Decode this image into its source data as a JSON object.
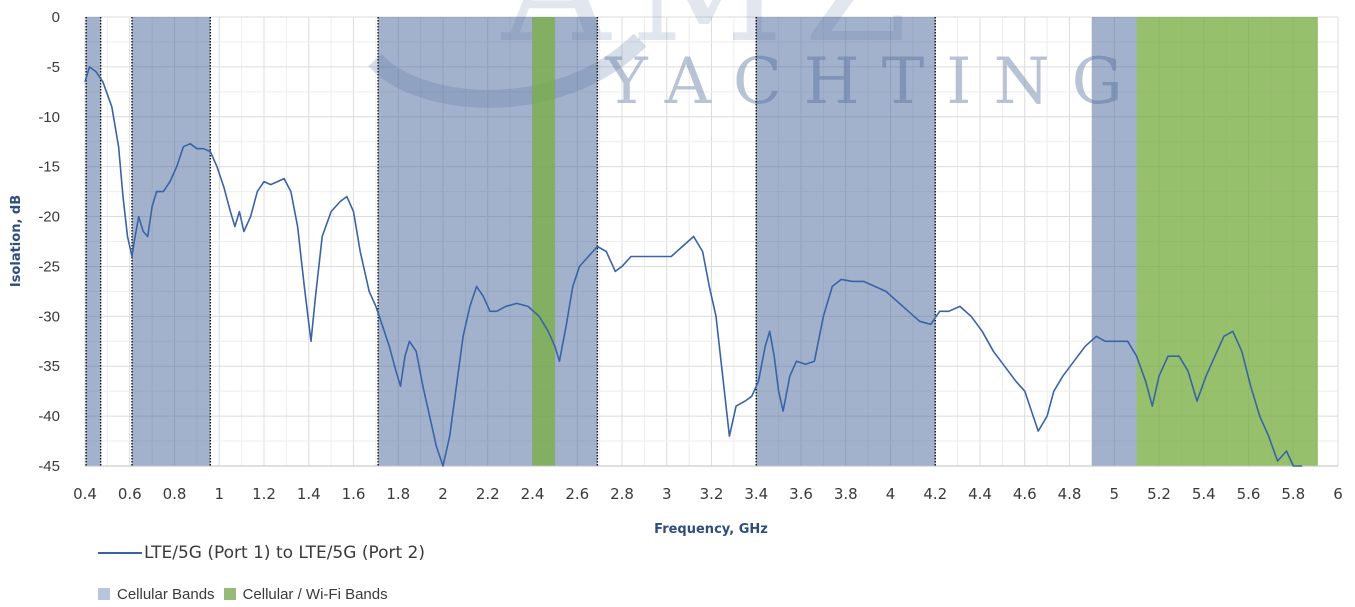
{
  "watermark": {
    "text": "YACHTING",
    "logo_letters": "AMZ"
  },
  "chart_data": {
    "type": "line",
    "xlabel": "Frequency, GHz",
    "ylabel": "Isolation, dB",
    "xlim": [
      0.4,
      6
    ],
    "ylim": [
      -45,
      0
    ],
    "x_ticks": [
      "0.4",
      "0.6",
      "0.8",
      "1",
      "1.2",
      "1.4",
      "1.6",
      "1.8",
      "2",
      "2.2",
      "2.4",
      "2.6",
      "2.8",
      "3",
      "3.2",
      "3.4",
      "3.6",
      "3.8",
      "4",
      "4.2",
      "4.4",
      "4.6",
      "4.8",
      "5",
      "5.2",
      "5.4",
      "5.6",
      "5.8",
      "6"
    ],
    "y_ticks": [
      "0",
      "-5",
      "-10",
      "-15",
      "-20",
      "-25",
      "-30",
      "-35",
      "-40",
      "-45"
    ],
    "grid": true,
    "legend_position": "bottom-left",
    "series": [
      {
        "name": "LTE/5G (Port 1) to LTE/5G (Port 2)",
        "color": "#3a63a6",
        "points": [
          [
            0.4,
            -6.5
          ],
          [
            0.42,
            -5.0
          ],
          [
            0.45,
            -5.5
          ],
          [
            0.48,
            -6.5
          ],
          [
            0.52,
            -9.0
          ],
          [
            0.55,
            -13.0
          ],
          [
            0.57,
            -18.0
          ],
          [
            0.59,
            -22.0
          ],
          [
            0.61,
            -24.0
          ],
          [
            0.62,
            -22.5
          ],
          [
            0.64,
            -20.0
          ],
          [
            0.66,
            -21.5
          ],
          [
            0.68,
            -22.0
          ],
          [
            0.7,
            -19.0
          ],
          [
            0.72,
            -17.5
          ],
          [
            0.75,
            -17.5
          ],
          [
            0.78,
            -16.5
          ],
          [
            0.81,
            -15.0
          ],
          [
            0.84,
            -13.0
          ],
          [
            0.87,
            -12.7
          ],
          [
            0.9,
            -13.2
          ],
          [
            0.93,
            -13.2
          ],
          [
            0.96,
            -13.5
          ],
          [
            0.99,
            -15.0
          ],
          [
            1.02,
            -17.0
          ],
          [
            1.05,
            -19.5
          ],
          [
            1.07,
            -21.0
          ],
          [
            1.09,
            -19.5
          ],
          [
            1.11,
            -21.5
          ],
          [
            1.14,
            -20.0
          ],
          [
            1.17,
            -17.5
          ],
          [
            1.2,
            -16.5
          ],
          [
            1.23,
            -16.8
          ],
          [
            1.26,
            -16.5
          ],
          [
            1.29,
            -16.2
          ],
          [
            1.32,
            -17.5
          ],
          [
            1.35,
            -21.0
          ],
          [
            1.38,
            -27.0
          ],
          [
            1.41,
            -32.5
          ],
          [
            1.43,
            -28.0
          ],
          [
            1.46,
            -22.0
          ],
          [
            1.5,
            -19.5
          ],
          [
            1.54,
            -18.5
          ],
          [
            1.57,
            -18.0
          ],
          [
            1.6,
            -19.5
          ],
          [
            1.63,
            -23.5
          ],
          [
            1.67,
            -27.5
          ],
          [
            1.7,
            -29.0
          ],
          [
            1.73,
            -31.0
          ],
          [
            1.76,
            -33.0
          ],
          [
            1.79,
            -35.5
          ],
          [
            1.81,
            -37.0
          ],
          [
            1.83,
            -34.0
          ],
          [
            1.85,
            -32.5
          ],
          [
            1.88,
            -33.5
          ],
          [
            1.91,
            -37.0
          ],
          [
            1.94,
            -40.0
          ],
          [
            1.97,
            -43.0
          ],
          [
            2.0,
            -45.0
          ],
          [
            2.03,
            -42.0
          ],
          [
            2.06,
            -37.0
          ],
          [
            2.09,
            -32.0
          ],
          [
            2.12,
            -29.0
          ],
          [
            2.15,
            -27.0
          ],
          [
            2.18,
            -28.0
          ],
          [
            2.21,
            -29.5
          ],
          [
            2.24,
            -29.5
          ],
          [
            2.28,
            -29.0
          ],
          [
            2.33,
            -28.7
          ],
          [
            2.38,
            -29.0
          ],
          [
            2.43,
            -30.0
          ],
          [
            2.47,
            -31.5
          ],
          [
            2.5,
            -33.0
          ],
          [
            2.52,
            -34.5
          ],
          [
            2.55,
            -31.0
          ],
          [
            2.58,
            -27.0
          ],
          [
            2.61,
            -25.0
          ],
          [
            2.65,
            -24.0
          ],
          [
            2.69,
            -23.0
          ],
          [
            2.73,
            -23.5
          ],
          [
            2.77,
            -25.5
          ],
          [
            2.8,
            -25.0
          ],
          [
            2.84,
            -24.0
          ],
          [
            2.9,
            -24.0
          ],
          [
            2.96,
            -24.0
          ],
          [
            3.02,
            -24.0
          ],
          [
            3.07,
            -23.0
          ],
          [
            3.12,
            -22.0
          ],
          [
            3.16,
            -23.5
          ],
          [
            3.19,
            -27.0
          ],
          [
            3.22,
            -30.0
          ],
          [
            3.25,
            -36.0
          ],
          [
            3.28,
            -42.0
          ],
          [
            3.31,
            -39.0
          ],
          [
            3.35,
            -38.5
          ],
          [
            3.38,
            -38.0
          ],
          [
            3.41,
            -36.5
          ],
          [
            3.44,
            -33.0
          ],
          [
            3.46,
            -31.5
          ],
          [
            3.48,
            -34.0
          ],
          [
            3.5,
            -37.5
          ],
          [
            3.52,
            -39.5
          ],
          [
            3.55,
            -36.0
          ],
          [
            3.58,
            -34.5
          ],
          [
            3.62,
            -34.8
          ],
          [
            3.66,
            -34.5
          ],
          [
            3.7,
            -30.0
          ],
          [
            3.74,
            -27.0
          ],
          [
            3.78,
            -26.3
          ],
          [
            3.83,
            -26.5
          ],
          [
            3.88,
            -26.5
          ],
          [
            3.93,
            -27.0
          ],
          [
            3.98,
            -27.5
          ],
          [
            4.03,
            -28.5
          ],
          [
            4.08,
            -29.5
          ],
          [
            4.13,
            -30.5
          ],
          [
            4.18,
            -30.8
          ],
          [
            4.22,
            -29.5
          ],
          [
            4.26,
            -29.5
          ],
          [
            4.31,
            -29.0
          ],
          [
            4.36,
            -30.0
          ],
          [
            4.41,
            -31.5
          ],
          [
            4.46,
            -33.5
          ],
          [
            4.51,
            -35.0
          ],
          [
            4.56,
            -36.5
          ],
          [
            4.6,
            -37.5
          ],
          [
            4.63,
            -39.5
          ],
          [
            4.66,
            -41.5
          ],
          [
            4.7,
            -40.0
          ],
          [
            4.73,
            -37.5
          ],
          [
            4.77,
            -36.0
          ],
          [
            4.82,
            -34.5
          ],
          [
            4.87,
            -33.0
          ],
          [
            4.92,
            -32.0
          ],
          [
            4.96,
            -32.5
          ],
          [
            5.01,
            -32.5
          ],
          [
            5.06,
            -32.5
          ],
          [
            5.1,
            -34.0
          ],
          [
            5.14,
            -36.5
          ],
          [
            5.17,
            -39.0
          ],
          [
            5.2,
            -36.0
          ],
          [
            5.24,
            -34.0
          ],
          [
            5.29,
            -34.0
          ],
          [
            5.33,
            -35.5
          ],
          [
            5.37,
            -38.5
          ],
          [
            5.41,
            -36.0
          ],
          [
            5.45,
            -34.0
          ],
          [
            5.49,
            -32.0
          ],
          [
            5.53,
            -31.5
          ],
          [
            5.57,
            -33.5
          ],
          [
            5.61,
            -37.0
          ],
          [
            5.65,
            -40.0
          ],
          [
            5.69,
            -42.0
          ],
          [
            5.73,
            -44.5
          ],
          [
            5.77,
            -43.5
          ],
          [
            5.8,
            -45.0
          ],
          [
            5.84,
            -45.0
          ]
        ]
      }
    ],
    "bands": [
      {
        "type": "cellular",
        "from": 0.405,
        "to": 0.47,
        "dotted_edges": true
      },
      {
        "type": "cellular",
        "from": 0.61,
        "to": 0.96,
        "dotted_edges": true
      },
      {
        "type": "cellular",
        "from": 1.71,
        "to": 2.69,
        "dotted_edges": true
      },
      {
        "type": "wifi",
        "from": 2.4,
        "to": 2.5
      },
      {
        "type": "cellular",
        "from": 3.4,
        "to": 4.2,
        "dotted_edges": true
      },
      {
        "type": "cellular",
        "from": 4.9,
        "to": 5.1,
        "dotted_edges": false
      },
      {
        "type": "wifi",
        "from": 5.1,
        "to": 5.91
      }
    ],
    "band_legend": [
      {
        "key": "cellular",
        "label": "Cellular Bands",
        "color": "#b7c6da"
      },
      {
        "key": "wifi",
        "label": "Cellular / Wi-Fi Bands",
        "color": "#98ba78"
      }
    ],
    "colors": {
      "cellular_fill": "#48669a",
      "wifi_fill": "#7aae44",
      "grid": "#e2e2e2",
      "axis_text": "#3a3a3a",
      "axis_title": "#2f4d7f"
    }
  }
}
